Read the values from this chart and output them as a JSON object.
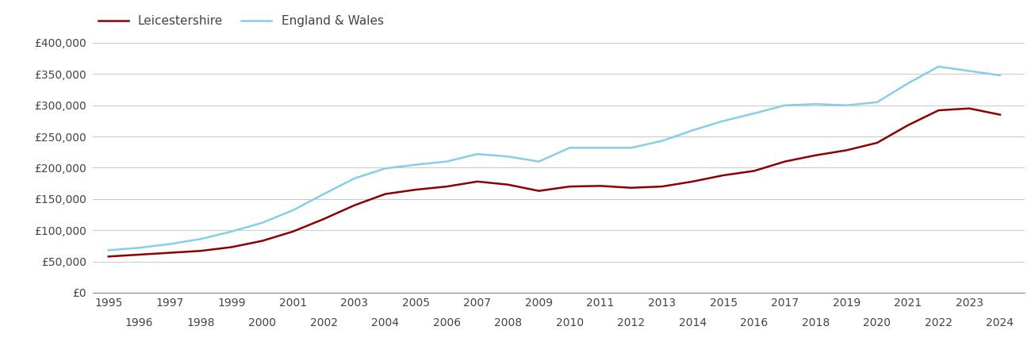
{
  "years": [
    1995,
    1996,
    1997,
    1998,
    1999,
    2000,
    2001,
    2002,
    2003,
    2004,
    2005,
    2006,
    2007,
    2008,
    2009,
    2010,
    2011,
    2012,
    2013,
    2014,
    2015,
    2016,
    2017,
    2018,
    2019,
    2020,
    2021,
    2022,
    2023,
    2024
  ],
  "leicestershire": [
    58000,
    61000,
    64000,
    67000,
    73000,
    83000,
    98000,
    118000,
    140000,
    158000,
    165000,
    170000,
    178000,
    173000,
    163000,
    170000,
    171000,
    168000,
    170000,
    178000,
    188000,
    195000,
    210000,
    220000,
    228000,
    240000,
    268000,
    292000,
    295000,
    285000
  ],
  "england_wales": [
    68000,
    72000,
    78000,
    86000,
    98000,
    112000,
    132000,
    158000,
    183000,
    199000,
    205000,
    210000,
    222000,
    218000,
    210000,
    232000,
    232000,
    232000,
    243000,
    260000,
    275000,
    287000,
    300000,
    302000,
    300000,
    305000,
    335000,
    362000,
    355000,
    348000
  ],
  "leicestershire_color": "#8B0000",
  "england_wales_color": "#87CEEB",
  "leicestershire_label": "Leicestershire",
  "england_wales_label": "England & Wales",
  "ylim": [
    0,
    400000
  ],
  "yticks": [
    0,
    50000,
    100000,
    150000,
    200000,
    250000,
    300000,
    350000,
    400000
  ],
  "ytick_labels": [
    "£0",
    "£50,000",
    "£100,000",
    "£150,000",
    "£200,000",
    "£250,000",
    "£300,000",
    "£350,000",
    "£400,000"
  ],
  "background_color": "#ffffff",
  "grid_color": "#cccccc",
  "line_width": 1.8,
  "tick_label_fontsize": 10,
  "legend_fontsize": 11
}
